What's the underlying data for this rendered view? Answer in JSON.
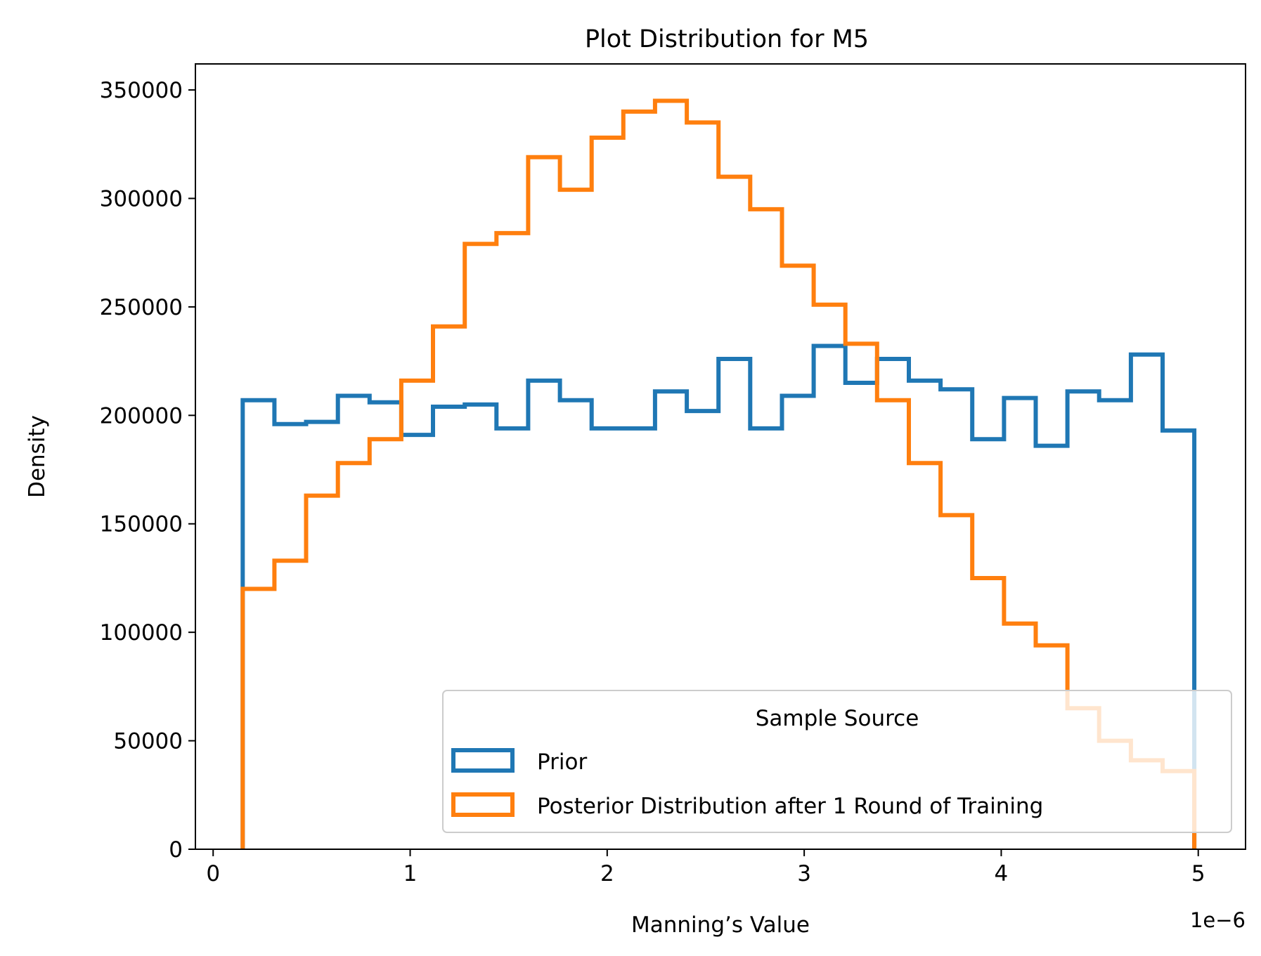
{
  "chart_data": {
    "type": "histogram-step",
    "title": "Plot Distribution for M5",
    "xlabel": "Manning’s Value",
    "ylabel": "Density",
    "x_offset_label": "1e−6",
    "xlim": [
      -0.09,
      5.24
    ],
    "ylim": [
      0,
      362000
    ],
    "xticks": [
      0,
      1,
      2,
      3,
      4,
      5
    ],
    "xtick_labels": [
      "0",
      "1",
      "2",
      "3",
      "4",
      "5"
    ],
    "yticks": [
      0,
      50000,
      100000,
      150000,
      200000,
      250000,
      300000,
      350000
    ],
    "ytick_labels": [
      "0",
      "50000",
      "100000",
      "150000",
      "200000",
      "250000",
      "300000",
      "350000"
    ],
    "grid": false,
    "legend": {
      "title": "Sample Source",
      "position": "lower-right"
    },
    "bin_edges": [
      0.15,
      0.311,
      0.472,
      0.633,
      0.794,
      0.955,
      1.116,
      1.277,
      1.438,
      1.599,
      1.76,
      1.921,
      2.082,
      2.243,
      2.404,
      2.565,
      2.726,
      2.887,
      3.048,
      3.209,
      3.37,
      3.531,
      3.692,
      3.853,
      4.014,
      4.175,
      4.336,
      4.497,
      4.658,
      4.819,
      4.98
    ],
    "series": [
      {
        "name": "Prior",
        "color": "#1f77b4",
        "values": [
          207000,
          196000,
          197000,
          209000,
          206000,
          191000,
          204000,
          205000,
          194000,
          216000,
          207000,
          194000,
          194000,
          211000,
          202000,
          226000,
          194000,
          209000,
          232000,
          215000,
          226000,
          216000,
          212000,
          189000,
          208000,
          186000,
          211000,
          207000,
          228000,
          193000
        ]
      },
      {
        "name": "Posterior Distribution after 1 Round of Training",
        "color": "#ff7f0e",
        "values": [
          120000,
          133000,
          163000,
          178000,
          189000,
          216000,
          241000,
          279000,
          284000,
          319000,
          304000,
          328000,
          340000,
          345000,
          335000,
          310000,
          295000,
          269000,
          251000,
          233000,
          207000,
          178000,
          154000,
          125000,
          104000,
          94000,
          65000,
          50000,
          41000,
          36000
        ]
      }
    ]
  }
}
